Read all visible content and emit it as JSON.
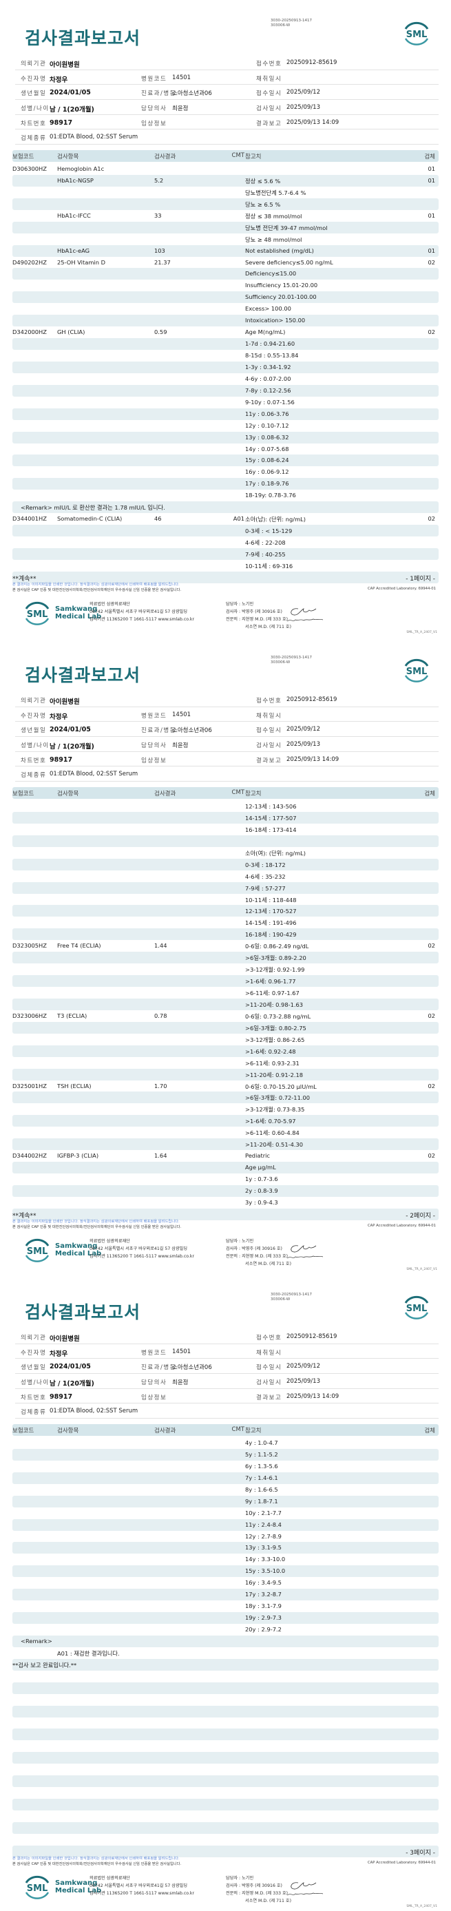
{
  "header": {
    "title": "검사결과보고서",
    "doc_id_line1": "3030-20250913-1417",
    "doc_id_line2": "303006-W",
    "logo_text": "SML",
    "brand_color": "#1d6e78"
  },
  "info": {
    "requesting_institution_label": "의뢰기관",
    "requesting_institution": "아이원병원",
    "patient_name_label": "수진자명",
    "patient_name": "차정우",
    "birth_date_label": "생년월일",
    "birth_date": "2024/01/05",
    "sex_age_label": "성별/나이",
    "sex_age": "남 / 1(20개월)",
    "chart_no_label": "차트번호",
    "chart_no": "98917",
    "specimen_type_label": "검체종류",
    "specimen_type": "01:EDTA Blood, 02:SST Serum",
    "hospital_code_label": "병원코드",
    "hospital_code": "14501",
    "department_label": "진료과/병동",
    "department": "소아청소년과06",
    "doctor_label": "담당의사",
    "doctor": "최윤정",
    "clinical_info_label": "임상정보",
    "clinical_info": "",
    "receipt_no_label": "접수번호",
    "receipt_no": "20250912-85619",
    "collection_date_label": "채취일시",
    "collection_date": "",
    "receipt_date_label": "접수일시",
    "receipt_date": "2025/09/12",
    "test_date_label": "검사일시",
    "test_date": "2025/09/13",
    "report_date_label": "결과보고",
    "report_date": "2025/09/13 14:09"
  },
  "table_headers": {
    "code": "보험코드",
    "item": "검사항목",
    "result": "검사결과",
    "cmt": "CMT",
    "ref": "참고치",
    "spec": "검체"
  },
  "pages": [
    {
      "continued": "**계속**",
      "page_label": "- 1페이지 -",
      "rows": [
        [
          "D306300HZ",
          "Hemoglobin A1c",
          "",
          "",
          "",
          "01"
        ],
        [
          "",
          "HbA1c-NGSP",
          "5.2",
          "",
          "정상 ≤ 5.6 %",
          "01"
        ],
        [
          "",
          "",
          "",
          "",
          "당뇨병전단계 5.7-6.4 %",
          ""
        ],
        [
          "",
          "",
          "",
          "",
          "당뇨 ≥ 6.5 %",
          ""
        ],
        [
          "",
          "HbA1c-IFCC",
          "33",
          "",
          "정상 ≤ 38 mmol/mol",
          "01"
        ],
        [
          "",
          "",
          "",
          "",
          "당뇨병 전단계 39-47 mmol/mol",
          ""
        ],
        [
          "",
          "",
          "",
          "",
          "당뇨 ≥ 48 mmol/mol",
          ""
        ],
        [
          "",
          "HbA1c-eAG",
          "103",
          "",
          "Not established (mg/dL)",
          "01"
        ],
        [
          "D490202HZ",
          "25-OH Vitamin D",
          "21.37",
          "",
          "Severe deficiency≤5.00 ng/mL",
          "02"
        ],
        [
          "",
          "",
          "",
          "",
          "Deficiency≤15.00",
          ""
        ],
        [
          "",
          "",
          "",
          "",
          "Insufficiency 15.01-20.00",
          ""
        ],
        [
          "",
          "",
          "",
          "",
          "Sufficiency 20.01-100.00",
          ""
        ],
        [
          "",
          "",
          "",
          "",
          "Excess> 100.00",
          ""
        ],
        [
          "",
          "",
          "",
          "",
          "Intoxication> 150.00",
          ""
        ],
        [
          "D342000HZ",
          "GH (CLIA)",
          "0.59",
          "",
          "Age M(ng/mL)",
          "02"
        ],
        [
          "",
          "",
          "",
          "",
          "1-7d : 0.94-21.60",
          ""
        ],
        [
          "",
          "",
          "",
          "",
          "8-15d : 0.55-13.84",
          ""
        ],
        [
          "",
          "",
          "",
          "",
          "1-3y : 0.34-1.92",
          ""
        ],
        [
          "",
          "",
          "",
          "",
          "4-6y : 0.07-2.00",
          ""
        ],
        [
          "",
          "",
          "",
          "",
          "7-8y : 0.12-2.56",
          ""
        ],
        [
          "",
          "",
          "",
          "",
          "9-10y : 0.07-1.56",
          ""
        ],
        [
          "",
          "",
          "",
          "",
          "11y : 0.06-3.76",
          ""
        ],
        [
          "",
          "",
          "",
          "",
          "12y : 0.10-7.12",
          ""
        ],
        [
          "",
          "",
          "",
          "",
          "13y : 0.08-6.32",
          ""
        ],
        [
          "",
          "",
          "",
          "",
          "14y : 0.07-5.68",
          ""
        ],
        [
          "",
          "",
          "",
          "",
          "15y : 0.08-6.24",
          ""
        ],
        [
          "",
          "",
          "",
          "",
          "16y : 0.06-9.12",
          ""
        ],
        [
          "",
          "",
          "",
          "",
          "17y : 0.18-9.76",
          ""
        ],
        [
          "",
          "",
          "",
          "",
          "18-19y: 0.78-3.76",
          ""
        ],
        {
          "remark": "<Remark>  mIU/L 로 환산한 결과는 1.78 mIU/L 입니다."
        },
        [
          "D344001HZ",
          "Somatomedin-C (CLIA)",
          "46",
          "A01",
          "소아(남): (단위: ng/mL)",
          "02"
        ],
        [
          "",
          "",
          "",
          "",
          "0-3세 : < 15-129",
          ""
        ],
        [
          "",
          "",
          "",
          "",
          "4-6세 : 22-208",
          ""
        ],
        [
          "",
          "",
          "",
          "",
          "7-9세 : 40-255",
          ""
        ],
        [
          "",
          "",
          "",
          "",
          "10-11세 : 69-316",
          ""
        ]
      ]
    },
    {
      "continued": "**계속**",
      "page_label": "- 2페이지 -",
      "rows": [
        [
          "",
          "",
          "",
          "",
          "12-13세 : 143-506",
          ""
        ],
        [
          "",
          "",
          "",
          "",
          "14-15세 : 177-507",
          ""
        ],
        [
          "",
          "",
          "",
          "",
          "16-18세 : 173-414",
          ""
        ],
        [
          "",
          "",
          "",
          "",
          "",
          ""
        ],
        [
          "",
          "",
          "",
          "",
          "소아(여): (단위: ng/mL)",
          ""
        ],
        [
          "",
          "",
          "",
          "",
          "0-3세 : 18-172",
          ""
        ],
        [
          "",
          "",
          "",
          "",
          "4-6세 : 35-232",
          ""
        ],
        [
          "",
          "",
          "",
          "",
          "7-9세 : 57-277",
          ""
        ],
        [
          "",
          "",
          "",
          "",
          "10-11세 : 118-448",
          ""
        ],
        [
          "",
          "",
          "",
          "",
          "12-13세 : 170-527",
          ""
        ],
        [
          "",
          "",
          "",
          "",
          "14-15세 : 191-496",
          ""
        ],
        [
          "",
          "",
          "",
          "",
          "16-18세 : 190-429",
          ""
        ],
        [
          "D323005HZ",
          "Free T4 (ECLIA)",
          "1.44",
          "",
          "0-6일: 0.86-2.49 ng/dL",
          "02"
        ],
        [
          "",
          "",
          "",
          "",
          ">6일-3개월: 0.89-2.20",
          ""
        ],
        [
          "",
          "",
          "",
          "",
          ">3-12개월: 0.92-1.99",
          ""
        ],
        [
          "",
          "",
          "",
          "",
          ">1-6세: 0.96-1.77",
          ""
        ],
        [
          "",
          "",
          "",
          "",
          ">6-11세: 0.97-1.67",
          ""
        ],
        [
          "",
          "",
          "",
          "",
          ">11-20세: 0.98-1.63",
          ""
        ],
        [
          "D323006HZ",
          "T3 (ECLIA)",
          "0.78",
          "",
          "0-6일: 0.73-2.88 ng/mL",
          "02"
        ],
        [
          "",
          "",
          "",
          "",
          ">6일-3개월: 0.80-2.75",
          ""
        ],
        [
          "",
          "",
          "",
          "",
          ">3-12개월: 0.86-2.65",
          ""
        ],
        [
          "",
          "",
          "",
          "",
          ">1-6세: 0.92-2.48",
          ""
        ],
        [
          "",
          "",
          "",
          "",
          ">6-11세: 0.93-2.31",
          ""
        ],
        [
          "",
          "",
          "",
          "",
          ">11-20세: 0.91-2.18",
          ""
        ],
        [
          "D325001HZ",
          "TSH (ECLIA)",
          "1.70",
          "",
          "0-6일: 0.70-15.20 μIU/mL",
          "02"
        ],
        [
          "",
          "",
          "",
          "",
          ">6일-3개월: 0.72-11.00",
          ""
        ],
        [
          "",
          "",
          "",
          "",
          ">3-12개월: 0.73-8.35",
          ""
        ],
        [
          "",
          "",
          "",
          "",
          ">1-6세: 0.70-5.97",
          ""
        ],
        [
          "",
          "",
          "",
          "",
          ">6-11세: 0.60-4.84",
          ""
        ],
        [
          "",
          "",
          "",
          "",
          ">11-20세: 0.51-4.30",
          ""
        ],
        [
          "D344002HZ",
          "IGFBP-3 (CLIA)",
          "1.64",
          "",
          "Pediatric",
          "02"
        ],
        [
          "",
          "",
          "",
          "",
          "Age μg/mL",
          ""
        ],
        [
          "",
          "",
          "",
          "",
          "1y : 0.7-3.6",
          ""
        ],
        [
          "",
          "",
          "",
          "",
          "2y : 0.8-3.9",
          ""
        ],
        [
          "",
          "",
          "",
          "",
          "3y : 0.9-4.3",
          ""
        ]
      ]
    },
    {
      "continued": "",
      "page_label": "- 3페이지 -",
      "rows": [
        [
          "",
          "",
          "",
          "",
          "4y : 1.0-4.7",
          ""
        ],
        [
          "",
          "",
          "",
          "",
          "5y : 1.1-5.2",
          ""
        ],
        [
          "",
          "",
          "",
          "",
          "6y : 1.3-5.6",
          ""
        ],
        [
          "",
          "",
          "",
          "",
          "7y : 1.4-6.1",
          ""
        ],
        [
          "",
          "",
          "",
          "",
          "8y : 1.6-6.5",
          ""
        ],
        [
          "",
          "",
          "",
          "",
          "9y : 1.8-7.1",
          ""
        ],
        [
          "",
          "",
          "",
          "",
          "10y : 2.1-7.7",
          ""
        ],
        [
          "",
          "",
          "",
          "",
          "11y : 2.4-8.4",
          ""
        ],
        [
          "",
          "",
          "",
          "",
          "12y : 2.7-8.9",
          ""
        ],
        [
          "",
          "",
          "",
          "",
          "13y : 3.1-9.5",
          ""
        ],
        [
          "",
          "",
          "",
          "",
          "14y : 3.3-10.0",
          ""
        ],
        [
          "",
          "",
          "",
          "",
          "15y : 3.5-10.0",
          ""
        ],
        [
          "",
          "",
          "",
          "",
          "16y : 3.4-9.5",
          ""
        ],
        [
          "",
          "",
          "",
          "",
          "17y : 3.2-8.7",
          ""
        ],
        [
          "",
          "",
          "",
          "",
          "18y : 3.1-7.9",
          ""
        ],
        [
          "",
          "",
          "",
          "",
          "19y : 2.9-7.3",
          ""
        ],
        [
          "",
          "",
          "",
          "",
          "20y : 2.9-7.2",
          ""
        ],
        {
          "remark": "<Remark>"
        },
        {
          "indent": "A01 : 재검한 결과입니다."
        },
        {
          "full": "**검사 보고 완료입니다.**"
        },
        [],
        [],
        [],
        [],
        [],
        [],
        [],
        [],
        [],
        [],
        [],
        [],
        [],
        [],
        []
      ]
    }
  ],
  "footer": {
    "notice_image": "본 결과지는 이미지파일을 인쇄한 것입니다. 정식결과지는 삼광의료재단에서 인쇄하여 배포됨을 알려드립니다.",
    "notice_cap": "본 검사실은 CAP 인증 및 대한진단검사의학회/진단검사의학재단의 우수검사실 신임 인증을 받은 검사실입니다.",
    "cap_label": "CAP Accredited Laboratory. 69944-01",
    "brand_line1": "Samkwang",
    "brand_line2": "Medical Lab",
    "org_name": "의료법인 삼광의료재단",
    "address": "06742 서울특별시 서초구 바우뫼로41길 57 삼광빌딩",
    "contact": "검사기관 11365200 T 1661-5117 www.smlab.co.kr",
    "manager": "담당자 : 노기민",
    "tester": "검사자 : 박영주 (제 30916 호)",
    "specialist1": "전문의 : 지현영 M.D. (제 333 호)",
    "specialist2": "서소연 M.D. (제 711 호)",
    "form_version": "SML_TR_A_2407_V1"
  }
}
